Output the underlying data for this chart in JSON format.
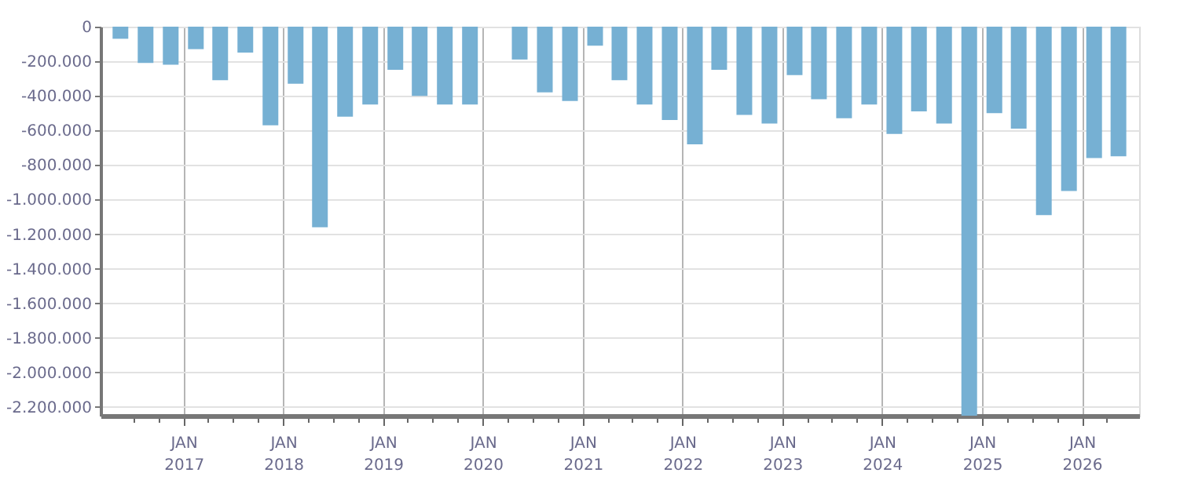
{
  "chart_data": {
    "type": "bar",
    "color": "#76b0d3",
    "grid": true,
    "x": [
      "2016-05-15",
      "2016-08-15",
      "2016-11-15",
      "2017-02-15",
      "2017-05-15",
      "2017-08-15",
      "2017-11-15",
      "2018-02-15",
      "2018-05-15",
      "2018-08-15",
      "2018-11-15",
      "2019-02-15",
      "2019-05-15",
      "2019-08-15",
      "2019-11-15",
      "2020-02-15",
      "2020-05-15",
      "2020-08-15",
      "2020-11-15",
      "2021-02-15",
      "2021-05-15",
      "2021-08-15",
      "2021-11-15",
      "2022-02-15",
      "2022-05-15",
      "2022-08-15",
      "2022-11-15",
      "2023-02-15",
      "2023-05-15",
      "2023-08-15",
      "2023-11-15",
      "2024-02-15",
      "2024-05-15",
      "2024-08-15",
      "2024-11-15",
      "2025-02-15",
      "2025-05-15",
      "2025-08-15",
      "2025-11-15",
      "2026-02-15",
      "2026-05-15"
    ],
    "values": [
      -70000,
      -210000,
      -220000,
      -130000,
      -310000,
      -150000,
      -570000,
      -330000,
      -1160000,
      -520000,
      -450000,
      -250000,
      -400000,
      -450000,
      -450000,
      null,
      -190000,
      -380000,
      -430000,
      -110000,
      -310000,
      -450000,
      -540000,
      -680000,
      -250000,
      -510000,
      -560000,
      -280000,
      -420000,
      -530000,
      -450000,
      -620000,
      -490000,
      -560000,
      -2250000,
      -500000,
      -590000,
      -1090000,
      -950000,
      -760000,
      -750000
    ],
    "xlim": [
      "2016-04",
      "2026-07"
    ],
    "xticks": [
      {
        "value": "2016-07",
        "label": null
      },
      {
        "value": "2016-10",
        "label": null
      },
      {
        "value": "2017-01",
        "label": "JAN 2017"
      },
      {
        "value": "2017-04",
        "label": null
      },
      {
        "value": "2017-07",
        "label": null
      },
      {
        "value": "2017-10",
        "label": null
      },
      {
        "value": "2018-01",
        "label": "JAN 2018"
      },
      {
        "value": "2018-04",
        "label": null
      },
      {
        "value": "2018-07",
        "label": null
      },
      {
        "value": "2018-10",
        "label": null
      },
      {
        "value": "2019-01",
        "label": "JAN 2019"
      },
      {
        "value": "2019-04",
        "label": null
      },
      {
        "value": "2019-07",
        "label": null
      },
      {
        "value": "2019-10",
        "label": null
      },
      {
        "value": "2020-01",
        "label": "JAN 2020"
      },
      {
        "value": "2020-04",
        "label": null
      },
      {
        "value": "2020-07",
        "label": null
      },
      {
        "value": "2020-10",
        "label": null
      },
      {
        "value": "2021-01",
        "label": "JAN 2021"
      },
      {
        "value": "2021-04",
        "label": null
      },
      {
        "value": "2021-07",
        "label": null
      },
      {
        "value": "2021-10",
        "label": null
      },
      {
        "value": "2022-01",
        "label": "JAN 2022"
      },
      {
        "value": "2022-04",
        "label": null
      },
      {
        "value": "2022-07",
        "label": null
      },
      {
        "value": "2022-10",
        "label": null
      },
      {
        "value": "2023-01",
        "label": "JAN 2023"
      },
      {
        "value": "2023-04",
        "label": null
      },
      {
        "value": "2023-07",
        "label": null
      },
      {
        "value": "2023-10",
        "label": null
      },
      {
        "value": "2024-01",
        "label": "JAN 2024"
      },
      {
        "value": "2024-04",
        "label": null
      },
      {
        "value": "2024-07",
        "label": null
      },
      {
        "value": "2024-10",
        "label": null
      },
      {
        "value": "2025-01",
        "label": "JAN 2025"
      },
      {
        "value": "2025-04",
        "label": null
      },
      {
        "value": "2025-07",
        "label": null
      },
      {
        "value": "2025-10",
        "label": null
      },
      {
        "value": "2026-01",
        "label": "JAN 2026"
      },
      {
        "value": "2026-04",
        "label": null
      }
    ],
    "ylim": [
      -2250000,
      0
    ],
    "yticks": [
      0,
      {
        "value": -200000,
        "label": "-200.000"
      },
      {
        "value": -400000,
        "label": "-400.000"
      },
      {
        "value": -600000,
        "label": "-600.000"
      },
      {
        "value": -800000,
        "label": "-800.000"
      },
      {
        "value": -1000000,
        "label": "-1.000.000"
      },
      {
        "value": -1200000,
        "label": "-1.200.000"
      },
      {
        "value": -1400000,
        "label": "-1.400.000"
      },
      {
        "value": -1600000,
        "label": "-1.600.000"
      },
      {
        "value": -1800000,
        "label": "-1.800.000"
      },
      {
        "value": -2000000,
        "label": "-2.000.000"
      },
      {
        "value": -2200000,
        "label": "-2.200.000"
      }
    ]
  }
}
